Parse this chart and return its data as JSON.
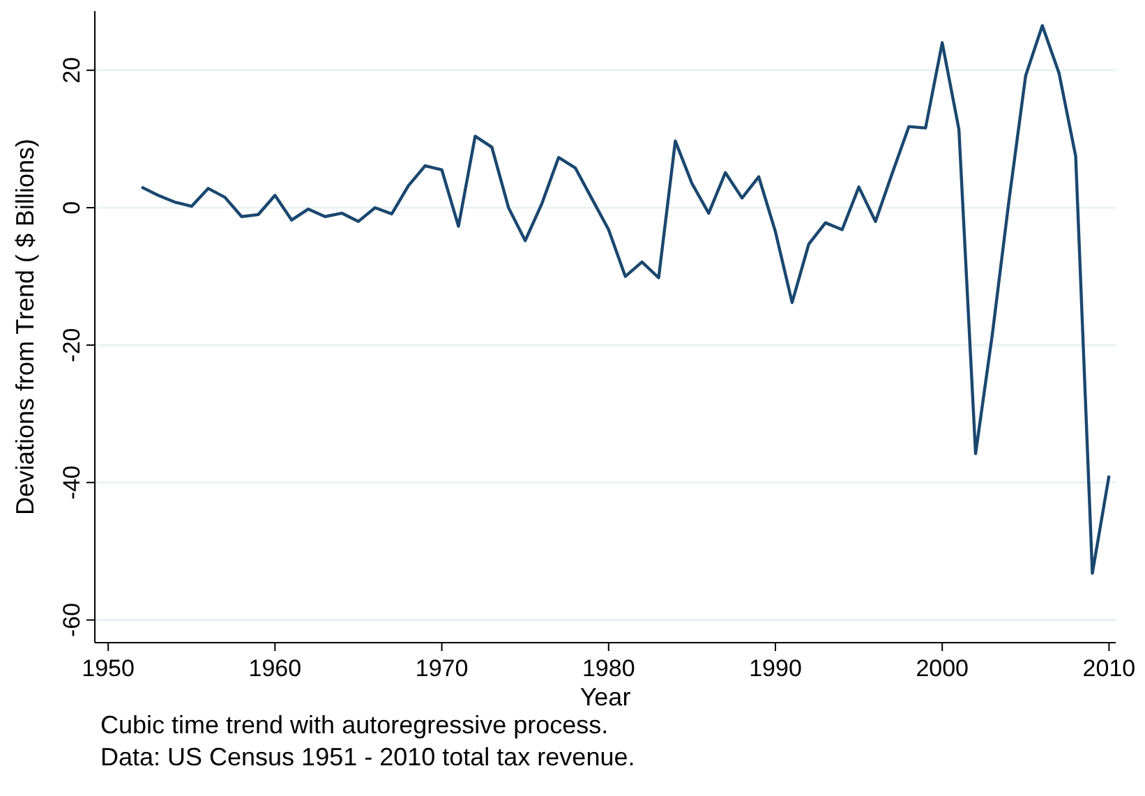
{
  "chart_data": {
    "type": "line",
    "xlabel": "Year",
    "ylabel": "Deviations from Trend ( $ Billions)",
    "annotations": [
      "Cubic time trend with autoregressive process.",
      "Data: US Census 1951 - 2010 total tax revenue."
    ],
    "x": [
      1952,
      1953,
      1954,
      1955,
      1956,
      1957,
      1958,
      1959,
      1960,
      1961,
      1962,
      1963,
      1964,
      1965,
      1966,
      1967,
      1968,
      1969,
      1970,
      1971,
      1972,
      1973,
      1974,
      1975,
      1976,
      1977,
      1978,
      1979,
      1980,
      1981,
      1982,
      1983,
      1984,
      1985,
      1986,
      1987,
      1988,
      1989,
      1990,
      1991,
      1992,
      1993,
      1994,
      1995,
      1996,
      1997,
      1998,
      1999,
      2000,
      2001,
      2002,
      2003,
      2004,
      2005,
      2006,
      2007,
      2008,
      2009,
      2010
    ],
    "series": [
      {
        "color": "#1a476f",
        "values": [
          3,
          1.8,
          0.8,
          0.2,
          2.8,
          1.5,
          -1.3,
          -1,
          1.8,
          -1.8,
          -0.2,
          -1.3,
          -0.8,
          -2,
          0,
          -0.9,
          3.2,
          6.1,
          5.5,
          -2.7,
          10.4,
          8.8,
          0,
          -4.8,
          0.6,
          7.3,
          5.8,
          1.3,
          -3.2,
          -10,
          -7.9,
          -10.2,
          9.7,
          3.5,
          -0.8,
          5.1,
          1.4,
          4.5,
          -3.5,
          -13.8,
          -5.3,
          -2.2,
          -3.2,
          3,
          -2,
          5,
          11.8,
          11.6,
          24,
          11.4,
          -35.8,
          -18.5,
          1,
          19.2,
          26.5,
          19.6,
          7.5,
          -53.2,
          -39
        ]
      }
    ],
    "xlim": [
      1949.2,
      2010.4
    ],
    "xticks": [
      1950,
      1960,
      1970,
      1980,
      1990,
      2000,
      2010
    ],
    "ylim": [
      -63.3,
      28.6
    ],
    "yticks": [
      -60,
      -40,
      -20,
      0,
      20
    ],
    "grid": "y",
    "marker": "none",
    "line_style": "solid"
  }
}
